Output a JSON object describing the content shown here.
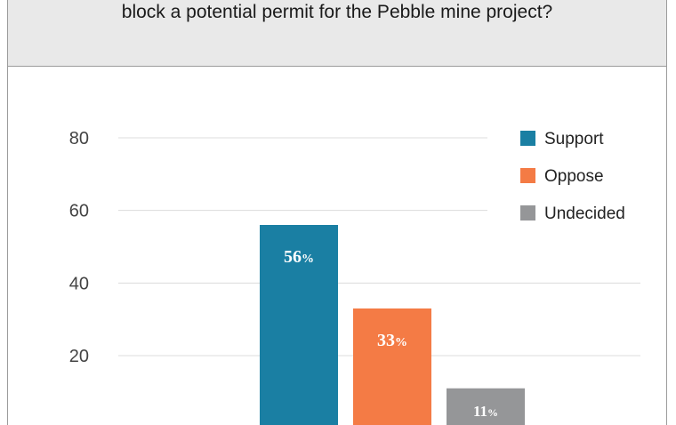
{
  "header": {
    "question_line": "block a potential permit for the Pebble mine project?"
  },
  "chart_data": {
    "type": "bar",
    "title": "block a potential permit for the Pebble mine project?",
    "xlabel": "",
    "ylabel": "",
    "ylim": [
      0,
      90
    ],
    "yticks": [
      20,
      40,
      60,
      80
    ],
    "grid": true,
    "legend_position": "top-right",
    "series": [
      {
        "name": "Support",
        "value": 56,
        "label": "56",
        "unit": "%",
        "color": "#1a7fa3"
      },
      {
        "name": "Oppose",
        "value": 33,
        "label": "33",
        "unit": "%",
        "color": "#f47b45"
      },
      {
        "name": "Undecided",
        "value": 11,
        "label": "11",
        "unit": "%",
        "color": "#959698"
      }
    ]
  }
}
